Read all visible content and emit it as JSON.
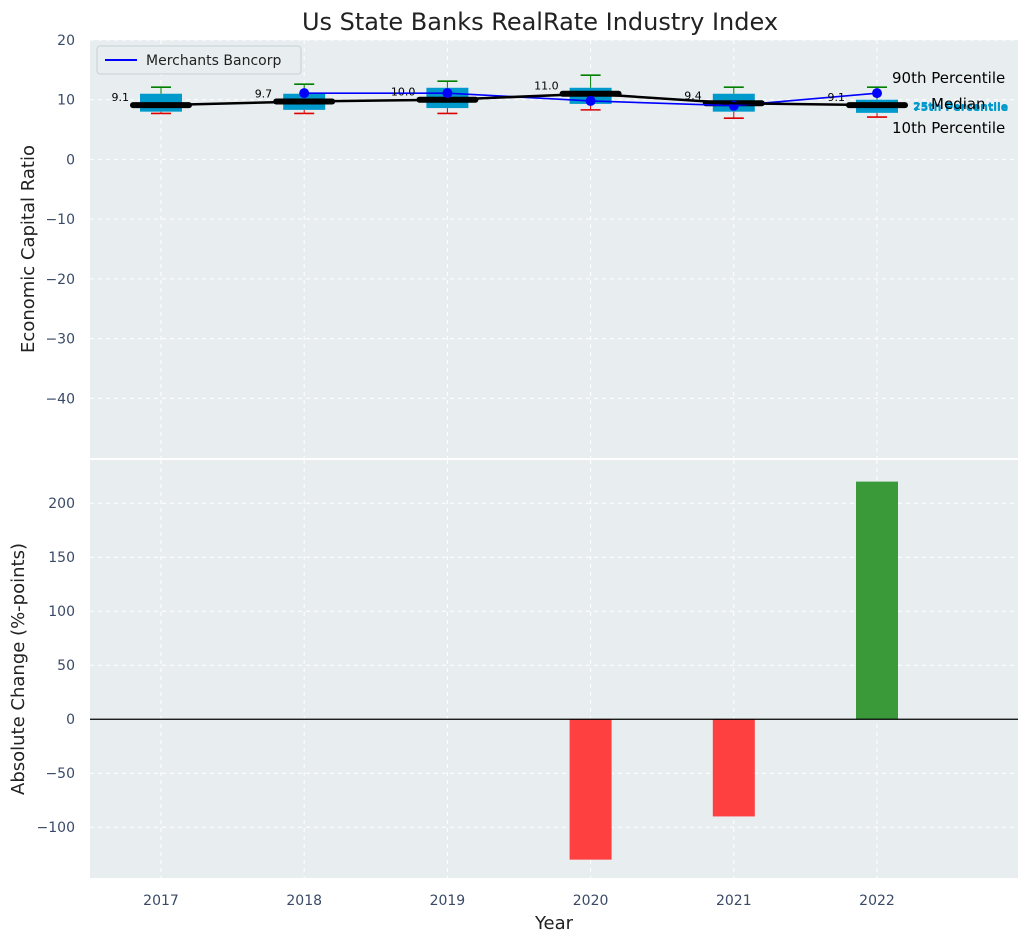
{
  "chart_data": [
    {
      "type": "box-line",
      "title": "Us State Banks RealRate Industry Index",
      "xlabel": "",
      "ylabel": "Economic Capital Ratio",
      "ylim": [
        -50,
        20
      ],
      "yticks": [
        20,
        10,
        0,
        -10,
        -20,
        -30,
        -40
      ],
      "categories": [
        "2017",
        "2018",
        "2019",
        "2020",
        "2021",
        "2022"
      ],
      "legend": {
        "label": "Merchants Bancorp",
        "placement": "top-left"
      },
      "series": [
        {
          "name": "Merchants Bancorp",
          "values": [
            null,
            11.1,
            11.1,
            9.8,
            9.0,
            11.1
          ],
          "color": "#0000ff"
        },
        {
          "name": "Median",
          "values": [
            9.1,
            9.7,
            10.0,
            11.0,
            9.4,
            9.1
          ],
          "color": "#000000"
        }
      ],
      "median_labels": [
        "9.1",
        "9.7",
        "10.0",
        "11.0",
        "9.4",
        "9.1"
      ],
      "boxes": [
        {
          "p10": 7.7,
          "p25": 8.0,
          "median": 9.1,
          "p75": 11.0,
          "p90": 12.1
        },
        {
          "p10": 7.7,
          "p25": 8.3,
          "median": 9.7,
          "p75": 11.0,
          "p90": 12.6
        },
        {
          "p10": 7.7,
          "p25": 8.6,
          "median": 10.0,
          "p75": 12.0,
          "p90": 13.1
        },
        {
          "p10": 8.3,
          "p25": 9.3,
          "median": 11.0,
          "p75": 12.0,
          "p90": 14.1
        },
        {
          "p10": 6.9,
          "p25": 8.0,
          "median": 9.4,
          "p75": 11.0,
          "p90": 12.1
        },
        {
          "p10": 7.1,
          "p25": 7.8,
          "median": 9.1,
          "p75": 10.0,
          "p90": 12.1
        }
      ],
      "annotations": {
        "p90": "90th Percentile",
        "p75": "75th Percentile",
        "median": "Median",
        "p25": "25th Percentile",
        "p10": "10th Percentile"
      },
      "colors": {
        "box": "#0099cc",
        "whisker_high": "#008000",
        "whisker_low": "#dd0000",
        "pct_small": "#0099cc"
      }
    },
    {
      "type": "bar",
      "xlabel": "Year",
      "ylabel": "Absolute Change (%-points)",
      "ylim": [
        -147,
        240
      ],
      "yticks": [
        200,
        150,
        100,
        50,
        0,
        -50,
        -100
      ],
      "categories": [
        "2017",
        "2018",
        "2019",
        "2020",
        "2021",
        "2022"
      ],
      "values": [
        0,
        0,
        0,
        -130,
        -90,
        220
      ],
      "colors": {
        "positive": "#3a9a3a",
        "negative": "#ff4040"
      }
    }
  ]
}
